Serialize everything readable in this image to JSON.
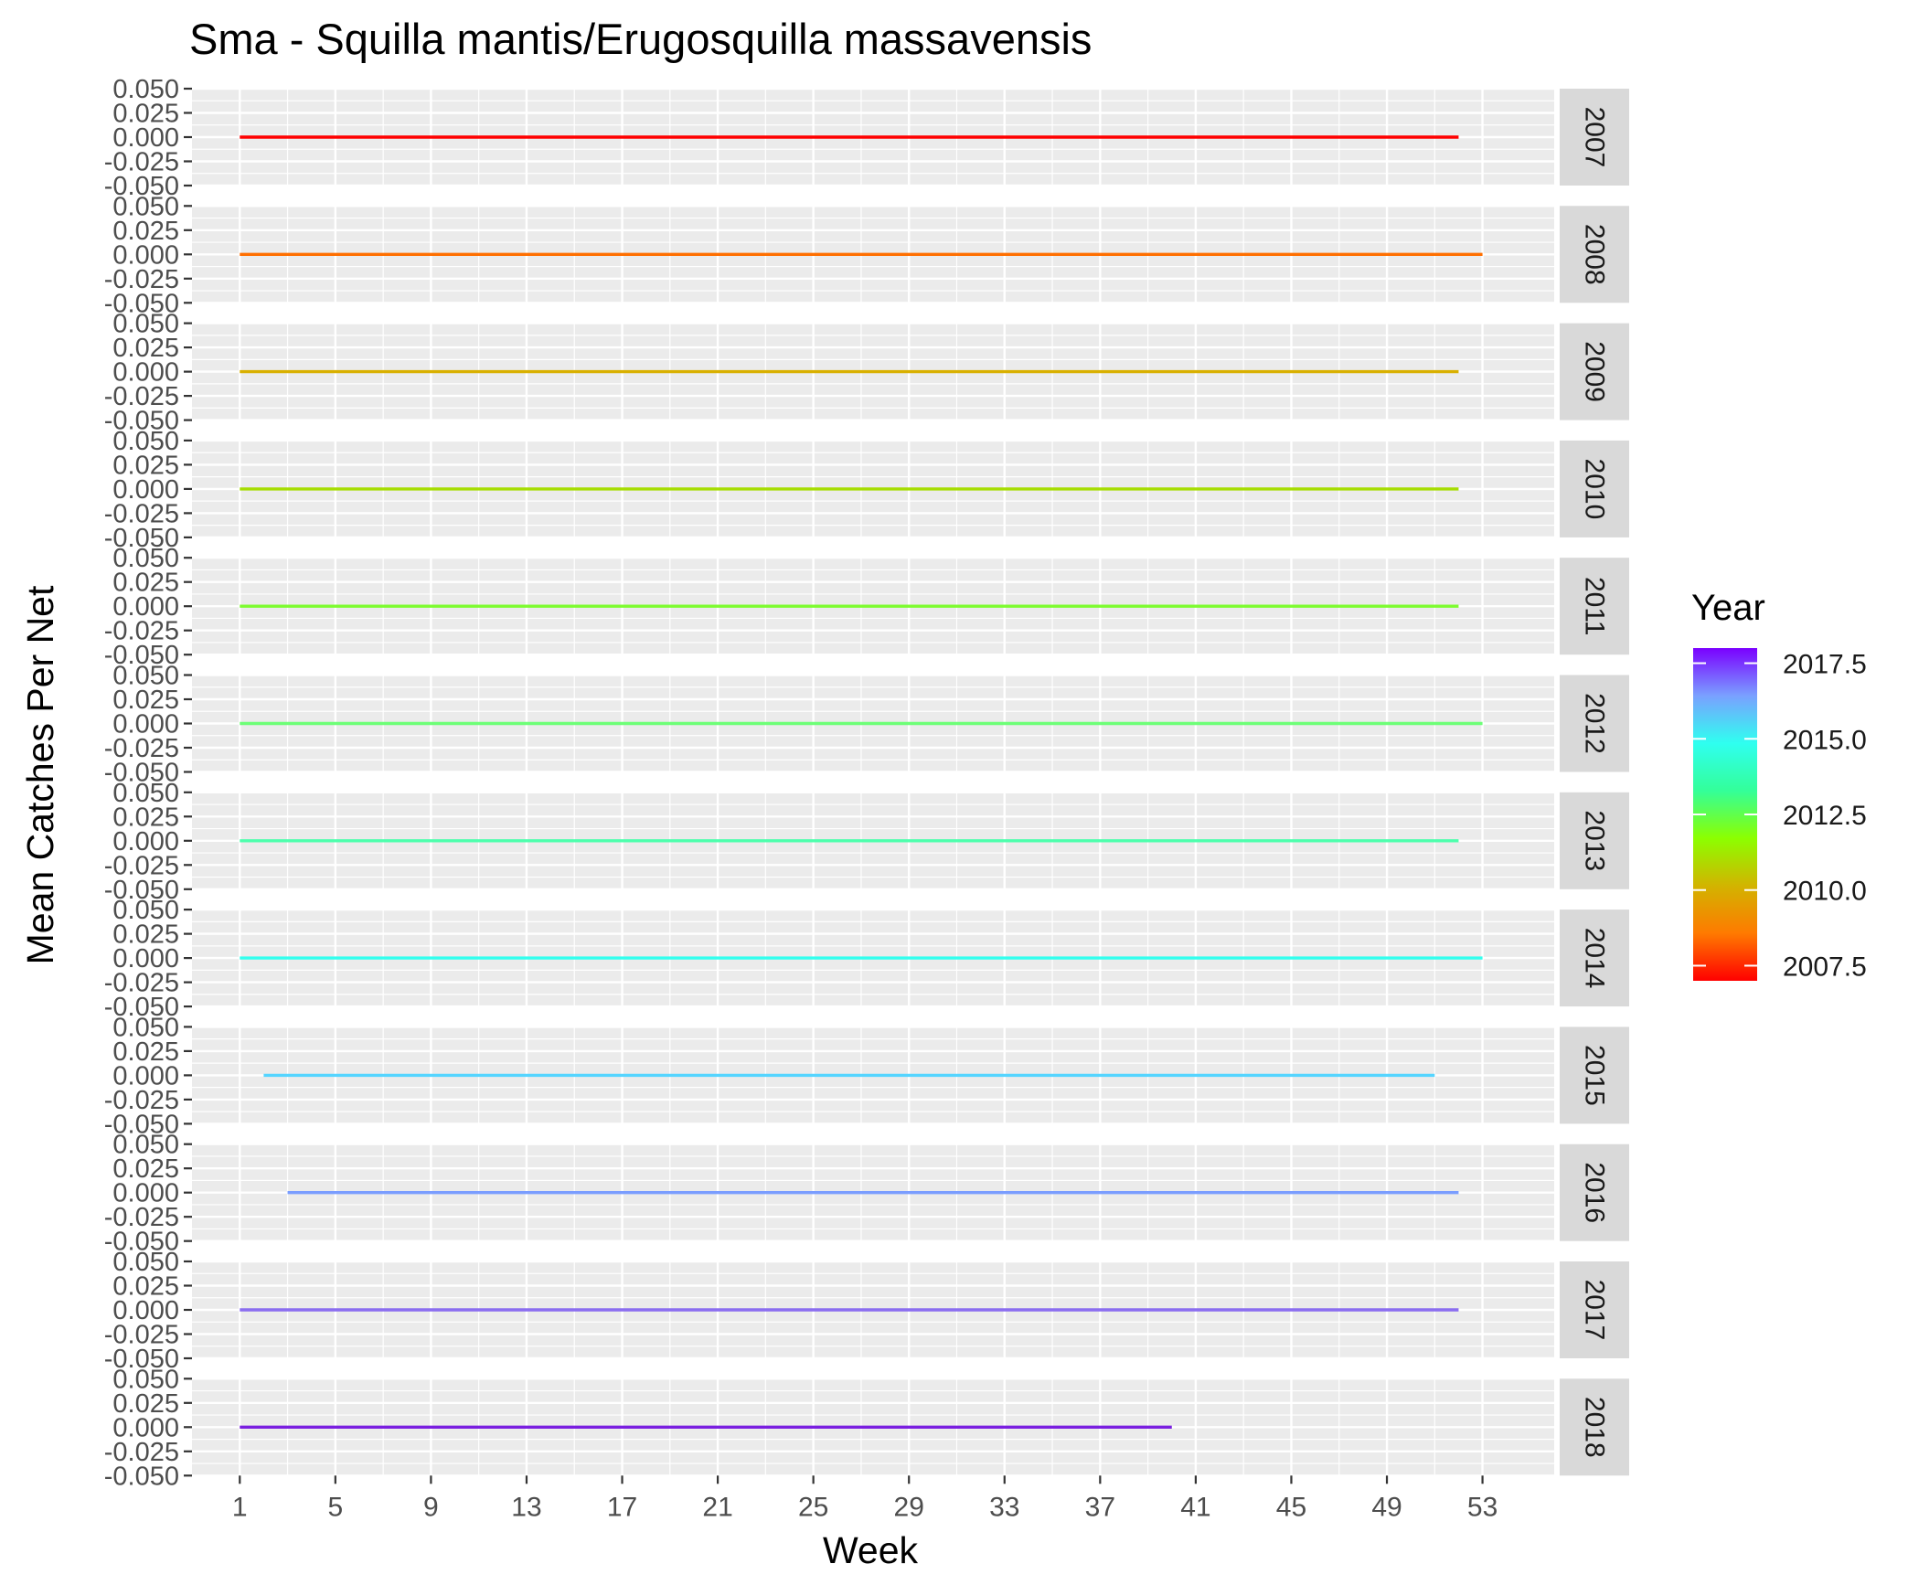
{
  "chart_data": {
    "type": "line",
    "title": "Sma - Squilla mantis/Erugosquilla massavensis",
    "xlabel": "Week",
    "ylabel": "Mean Catches Per Net",
    "xlim": [
      -1,
      56
    ],
    "ylim": [
      -0.05,
      0.05
    ],
    "x_ticks": [
      1,
      5,
      9,
      13,
      17,
      21,
      25,
      29,
      33,
      37,
      41,
      45,
      49,
      53
    ],
    "y_ticks": [
      "-0.050",
      "-0.025",
      "0.000",
      "0.025",
      "0.050"
    ],
    "grid": true,
    "facets": [
      {
        "label": "2007",
        "year": 2007,
        "color": "#ff0000",
        "x_start": 1,
        "x_end": 52,
        "value": 0
      },
      {
        "label": "2008",
        "year": 2008,
        "color": "#ff6f00",
        "x_start": 1,
        "x_end": 53,
        "value": 0
      },
      {
        "label": "2009",
        "year": 2009,
        "color": "#d9b000",
        "x_start": 1,
        "x_end": 52,
        "value": 0
      },
      {
        "label": "2010",
        "year": 2010,
        "color": "#a6dd00",
        "x_start": 1,
        "x_end": 52,
        "value": 0
      },
      {
        "label": "2011",
        "year": 2011,
        "color": "#7dfc2f",
        "x_start": 1,
        "x_end": 52,
        "value": 0
      },
      {
        "label": "2012",
        "year": 2012,
        "color": "#6dff77",
        "x_start": 1,
        "x_end": 53,
        "value": 0
      },
      {
        "label": "2013",
        "year": 2013,
        "color": "#4dffad",
        "x_start": 1,
        "x_end": 52,
        "value": 0
      },
      {
        "label": "2014",
        "year": 2014,
        "color": "#33ffee",
        "x_start": 1,
        "x_end": 53,
        "value": 0
      },
      {
        "label": "2015",
        "year": 2015,
        "color": "#55d5ff",
        "x_start": 2,
        "x_end": 51,
        "value": 0
      },
      {
        "label": "2016",
        "year": 2016,
        "color": "#7a9dff",
        "x_start": 3,
        "x_end": 52,
        "value": 0
      },
      {
        "label": "2017",
        "year": 2017,
        "color": "#8a6df0",
        "x_start": 1,
        "x_end": 52,
        "value": 0
      },
      {
        "label": "2018",
        "year": 2018,
        "color": "#7a1fe0",
        "x_start": 1,
        "x_end": 40,
        "value": 0
      }
    ],
    "legend": {
      "title": "Year",
      "placement": "right",
      "range": [
        2007,
        2018
      ],
      "ticks": [
        2007.5,
        2010.0,
        2012.5,
        2015.0,
        2017.5
      ],
      "tick_labels": [
        "2007.5",
        "2010.0",
        "2012.5",
        "2015.0",
        "2017.5"
      ],
      "gradient": [
        "#ff0000",
        "#ff7a00",
        "#d2b400",
        "#8cff00",
        "#33ff99",
        "#2ffff0",
        "#7aa0ff",
        "#7a00ff"
      ]
    }
  }
}
